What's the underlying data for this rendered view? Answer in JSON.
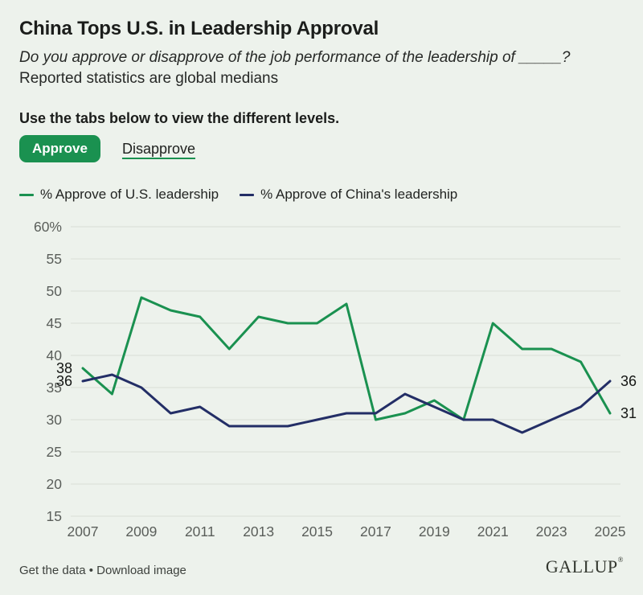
{
  "colors": {
    "green": "#1a9150",
    "navy": "#232e66",
    "background": "#edf2ec",
    "gridline": "#dde3da",
    "axis_text": "#5a5e5a"
  },
  "header": {
    "title": "China Tops U.S. in Leadership Approval",
    "question": "Do you approve or disapprove of the job performance of the leadership of _____?",
    "note": "Reported statistics are global medians"
  },
  "tabs": {
    "instruction": "Use the tabs below to view the different levels.",
    "active": "Approve",
    "items": [
      {
        "label": "Approve"
      },
      {
        "label": "Disapprove"
      }
    ]
  },
  "legend": [
    {
      "label": "% Approve of U.S. leadership",
      "color": "#1a9150"
    },
    {
      "label": "% Approve of China's leadership",
      "color": "#232e66"
    }
  ],
  "chart_data": {
    "type": "line",
    "x": [
      2007,
      2008,
      2009,
      2010,
      2011,
      2012,
      2013,
      2014,
      2015,
      2016,
      2017,
      2018,
      2019,
      2020,
      2021,
      2022,
      2023,
      2024,
      2025
    ],
    "series": [
      {
        "name": "% Approve of U.S. leadership",
        "color": "#1a9150",
        "values": [
          38,
          34,
          49,
          47,
          46,
          41,
          46,
          45,
          45,
          48,
          30,
          31,
          33,
          30,
          45,
          41,
          41,
          39,
          31
        ]
      },
      {
        "name": "% Approve of China's leadership",
        "color": "#232e66",
        "values": [
          36,
          37,
          35,
          31,
          32,
          29,
          29,
          29,
          30,
          31,
          31,
          34,
          32,
          30,
          30,
          28,
          30,
          32,
          36
        ]
      }
    ],
    "ylim": [
      15,
      60
    ],
    "yticks": [
      {
        "value": 60,
        "label": "60%"
      },
      {
        "value": 55,
        "label": "55"
      },
      {
        "value": 50,
        "label": "50"
      },
      {
        "value": 45,
        "label": "45"
      },
      {
        "value": 40,
        "label": "40"
      },
      {
        "value": 35,
        "label": "35"
      },
      {
        "value": 30,
        "label": "30"
      },
      {
        "value": 25,
        "label": "25"
      },
      {
        "value": 20,
        "label": "20"
      },
      {
        "value": 15,
        "label": "15"
      }
    ],
    "xticks": [
      2007,
      2009,
      2011,
      2013,
      2015,
      2017,
      2019,
      2021,
      2023,
      2025
    ],
    "grid": "horizontal",
    "legend_position": "top",
    "point_labels": [
      {
        "series": 0,
        "x": 2007,
        "text": "38",
        "side": "left"
      },
      {
        "series": 1,
        "x": 2007,
        "text": "36",
        "side": "left"
      },
      {
        "series": 1,
        "x": 2025,
        "text": "36",
        "side": "right"
      },
      {
        "series": 0,
        "x": 2025,
        "text": "31",
        "side": "right"
      }
    ]
  },
  "footer": {
    "links": [
      "Get the data",
      "Download image"
    ],
    "separator": " • ",
    "brand": "GALLUP",
    "brand_mark": "®"
  }
}
